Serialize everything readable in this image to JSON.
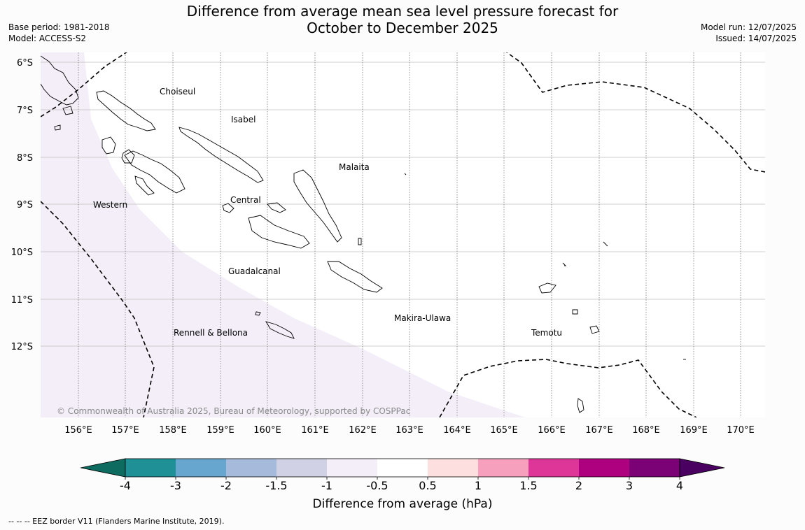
{
  "title": {
    "line1": "Difference from average mean sea level pressure forecast for",
    "line2": "October to December 2025"
  },
  "meta_left": {
    "base_period": "Base period: 1981-2018",
    "model": "Model: ACCESS-S2"
  },
  "meta_right": {
    "model_run": "Model run: 12/07/2025",
    "issued": "Issued: 14/07/2025"
  },
  "map": {
    "lat_labels": [
      "6°S",
      "7°S",
      "8°S",
      "9°S",
      "10°S",
      "11°S",
      "12°S"
    ],
    "lon_labels": [
      "156°E",
      "157°E",
      "158°E",
      "159°E",
      "160°E",
      "161°E",
      "162°E",
      "163°E",
      "164°E",
      "165°E",
      "166°E",
      "167°E",
      "168°E",
      "169°E",
      "170°E"
    ],
    "regions": {
      "choiseul": "Choiseul",
      "isabel": "Isabel",
      "malaita": "Malaita",
      "central": "Central",
      "western": "Western",
      "guadalcanal": "Guadalcanal",
      "makira": "Makira-Ulawa",
      "rennell": "Rennell & Bellona",
      "temotu": "Temotu"
    },
    "copyright": "© Commonwealth of Australia 2025, Bureau of Meteorology, supported by COSPPac",
    "shaded_category": "-1 to -0.5",
    "background_category": "-0.5 to 0.5"
  },
  "colorbar": {
    "ticks": [
      "-4",
      "-3",
      "-2",
      "-1.5",
      "-1",
      "-0.5",
      "0.5",
      "1",
      "1.5",
      "2",
      "3",
      "4"
    ],
    "colors": [
      "#0e6b5f",
      "#1f9196",
      "#67a7cf",
      "#a6badb",
      "#d0d1e4",
      "#f3eef7",
      "#ffffff",
      "#fddfe0",
      "#f7a0bd",
      "#dd3598",
      "#ad0180",
      "#7a0176",
      "#4a0060"
    ],
    "label": "Difference from average (hPa)"
  },
  "footer": "--  --  -- EEZ border V11 (Flanders Marine Institute, 2019)."
}
